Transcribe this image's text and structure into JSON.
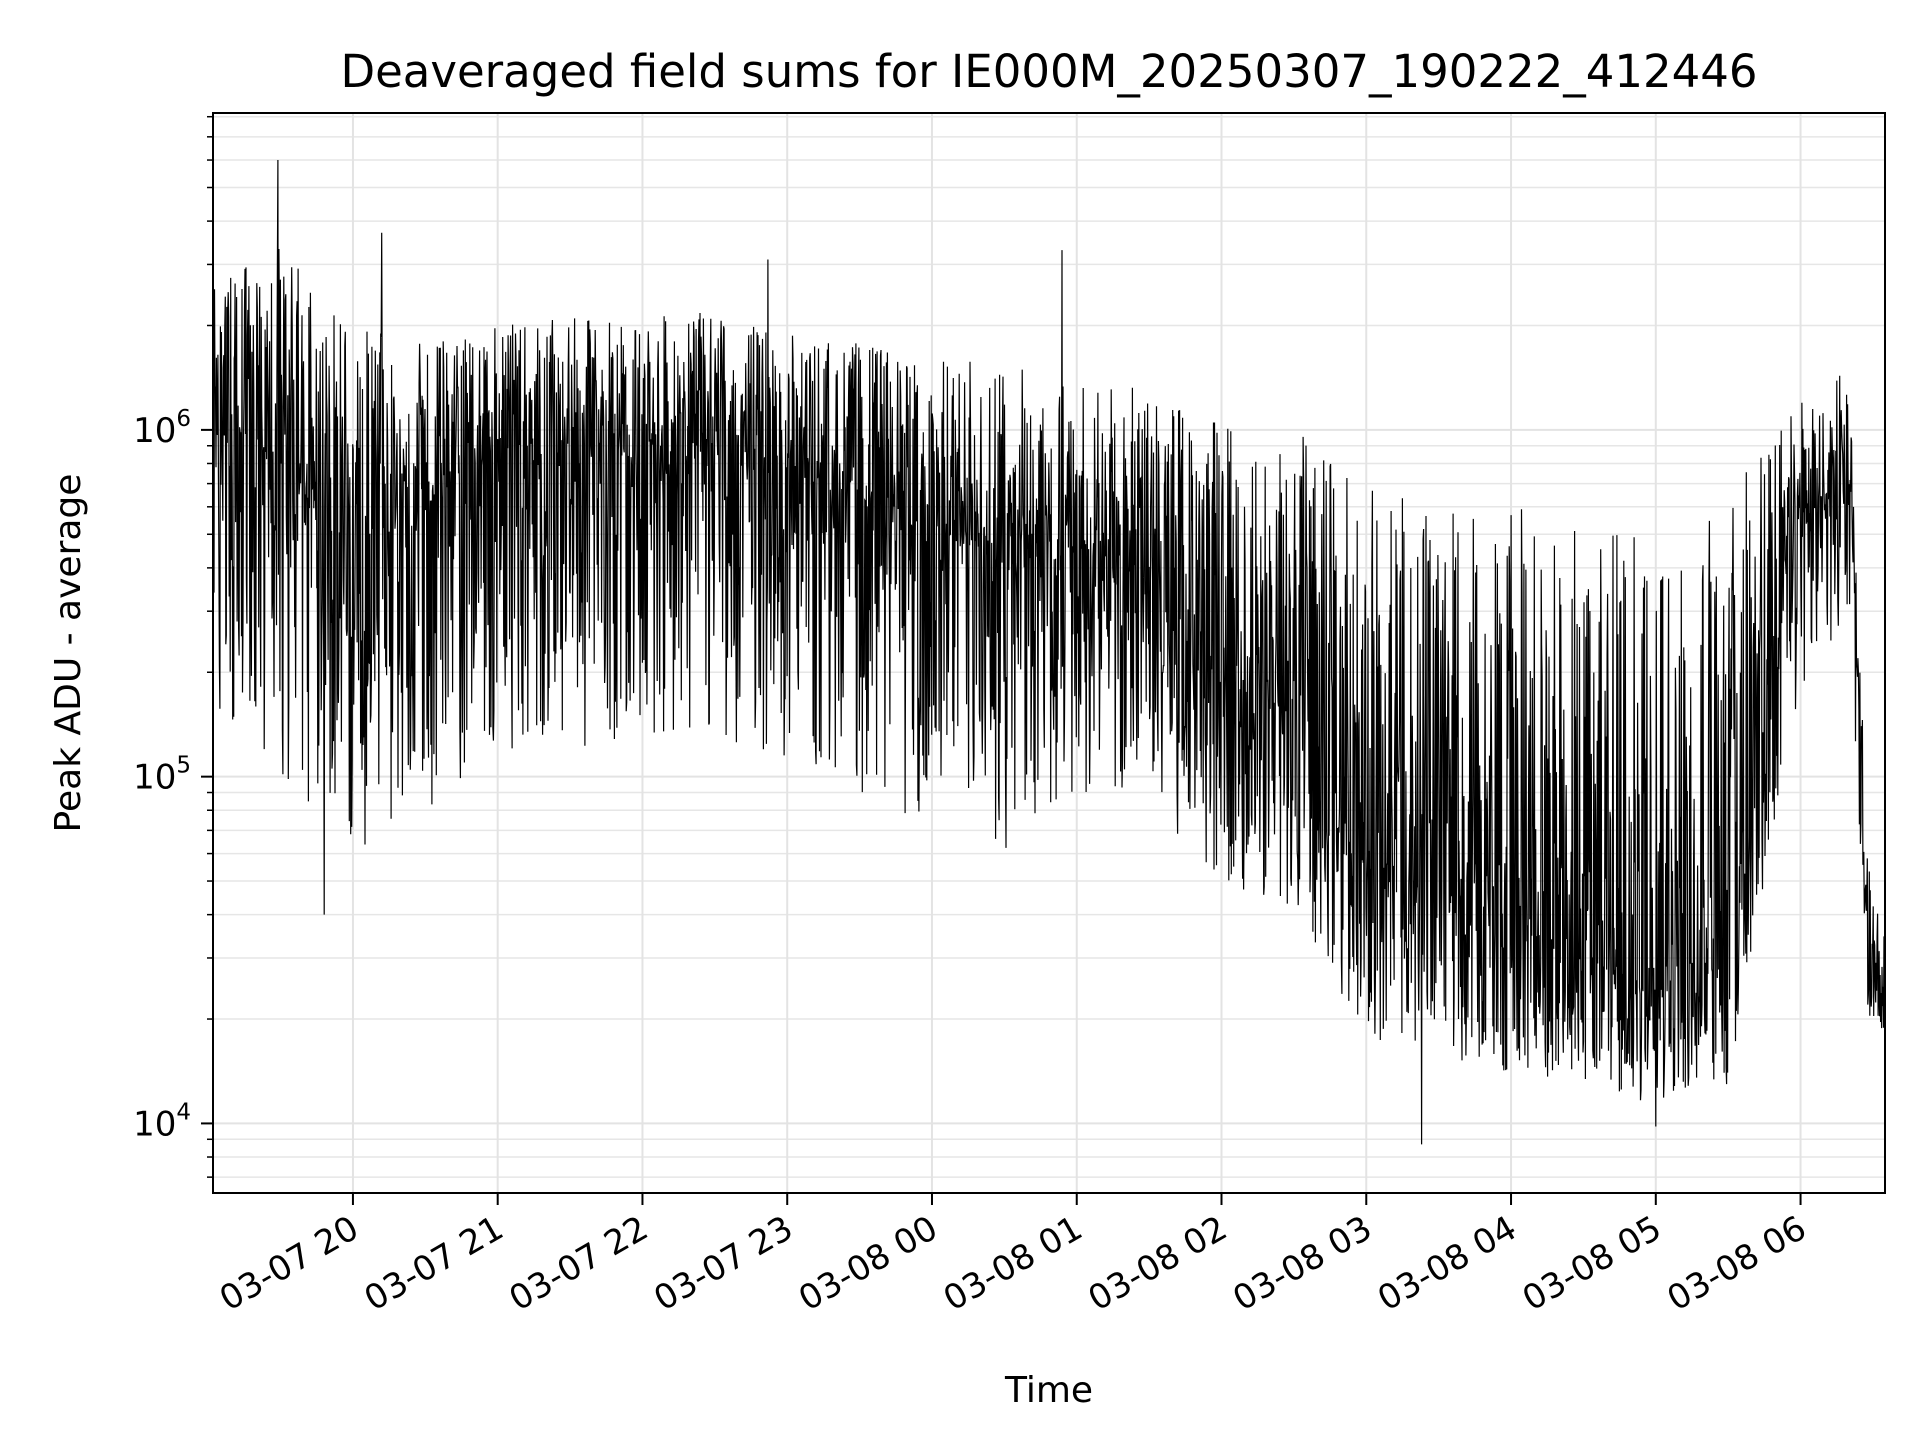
{
  "chart_data": {
    "type": "line",
    "title": "Deaveraged field sums for IE000M_20250307_190222_412446",
    "xlabel": "Time",
    "ylabel": "Peak ADU - average",
    "y_scale": "log",
    "xlim": [
      "2025-03-07 19:02",
      "2025-03-08 06:35"
    ],
    "ylim": [
      6300,
      8200000
    ],
    "grid": true,
    "line_color": "#000000",
    "x_ticks": [
      {
        "value": "2025-03-07 20:00",
        "label": "03-07 20"
      },
      {
        "value": "2025-03-07 21:00",
        "label": "03-07 21"
      },
      {
        "value": "2025-03-07 22:00",
        "label": "03-07 22"
      },
      {
        "value": "2025-03-07 23:00",
        "label": "03-07 23"
      },
      {
        "value": "2025-03-08 00:00",
        "label": "03-08 00"
      },
      {
        "value": "2025-03-08 01:00",
        "label": "03-08 01"
      },
      {
        "value": "2025-03-08 02:00",
        "label": "03-08 02"
      },
      {
        "value": "2025-03-08 03:00",
        "label": "03-08 03"
      },
      {
        "value": "2025-03-08 04:00",
        "label": "03-08 04"
      },
      {
        "value": "2025-03-08 05:00",
        "label": "03-08 05"
      },
      {
        "value": "2025-03-08 06:00",
        "label": "03-08 06"
      }
    ],
    "y_ticks": [
      {
        "value": 10000,
        "base": "10",
        "exp": "4"
      },
      {
        "value": 100000,
        "base": "10",
        "exp": "5"
      },
      {
        "value": 1000000,
        "base": "10",
        "exp": "6"
      }
    ],
    "envelope": [
      {
        "t": "2025-03-07 19:02",
        "low": 150000,
        "high": 2600000,
        "median": 900000
      },
      {
        "t": "2025-03-07 19:30",
        "low": 100000,
        "high": 3500000,
        "median": 800000
      },
      {
        "t": "2025-03-07 20:00",
        "low": 60000,
        "high": 2000000,
        "median": 500000
      },
      {
        "t": "2025-03-07 20:30",
        "low": 80000,
        "high": 1800000,
        "median": 600000
      },
      {
        "t": "2025-03-07 21:00",
        "low": 120000,
        "high": 2000000,
        "median": 900000
      },
      {
        "t": "2025-03-07 21:30",
        "low": 120000,
        "high": 2100000,
        "median": 900000
      },
      {
        "t": "2025-03-07 22:00",
        "low": 130000,
        "high": 2100000,
        "median": 900000
      },
      {
        "t": "2025-03-07 22:30",
        "low": 130000,
        "high": 2200000,
        "median": 900000
      },
      {
        "t": "2025-03-07 23:00",
        "low": 110000,
        "high": 1900000,
        "median": 750000
      },
      {
        "t": "2025-03-07 23:30",
        "low": 90000,
        "high": 1800000,
        "median": 650000
      },
      {
        "t": "2025-03-08 00:00",
        "low": 70000,
        "high": 1600000,
        "median": 500000
      },
      {
        "t": "2025-03-08 00:30",
        "low": 60000,
        "high": 1600000,
        "median": 420000
      },
      {
        "t": "2025-03-08 01:00",
        "low": 90000,
        "high": 1400000,
        "median": 450000
      },
      {
        "t": "2025-03-08 01:30",
        "low": 80000,
        "high": 1300000,
        "median": 400000
      },
      {
        "t": "2025-03-08 02:00",
        "low": 50000,
        "high": 1100000,
        "median": 200000
      },
      {
        "t": "2025-03-08 02:30",
        "low": 40000,
        "high": 1000000,
        "median": 150000
      },
      {
        "t": "2025-03-08 03:00",
        "low": 18000,
        "high": 700000,
        "median": 60000
      },
      {
        "t": "2025-03-08 03:30",
        "low": 15000,
        "high": 600000,
        "median": 45000
      },
      {
        "t": "2025-03-08 04:00",
        "low": 14000,
        "high": 600000,
        "median": 40000
      },
      {
        "t": "2025-03-08 04:30",
        "low": 13000,
        "high": 550000,
        "median": 30000
      },
      {
        "t": "2025-03-08 05:00",
        "low": 11000,
        "high": 500000,
        "median": 25000
      },
      {
        "t": "2025-03-08 05:30",
        "low": 12000,
        "high": 700000,
        "median": 30000
      },
      {
        "t": "2025-03-08 06:00",
        "low": 150000,
        "high": 1200000,
        "median": 500000
      },
      {
        "t": "2025-03-08 06:20",
        "low": 300000,
        "high": 1500000,
        "median": 900000
      },
      {
        "t": "2025-03-08 06:28",
        "low": 20000,
        "high": 60000,
        "median": 28000
      },
      {
        "t": "2025-03-08 06:35",
        "low": 18000,
        "high": 35000,
        "median": 24000
      }
    ],
    "spikes": [
      {
        "t": "2025-03-07 19:29",
        "value": 6000000
      },
      {
        "t": "2025-03-07 20:12",
        "value": 3700000
      },
      {
        "t": "2025-03-07 22:52",
        "value": 3100000
      },
      {
        "t": "2025-03-08 00:54",
        "value": 3300000
      },
      {
        "t": "2025-03-07 19:48",
        "value": 40000
      },
      {
        "t": "2025-03-08 03:23",
        "value": 8700
      },
      {
        "t": "2025-03-08 05:00",
        "value": 9800
      }
    ]
  }
}
